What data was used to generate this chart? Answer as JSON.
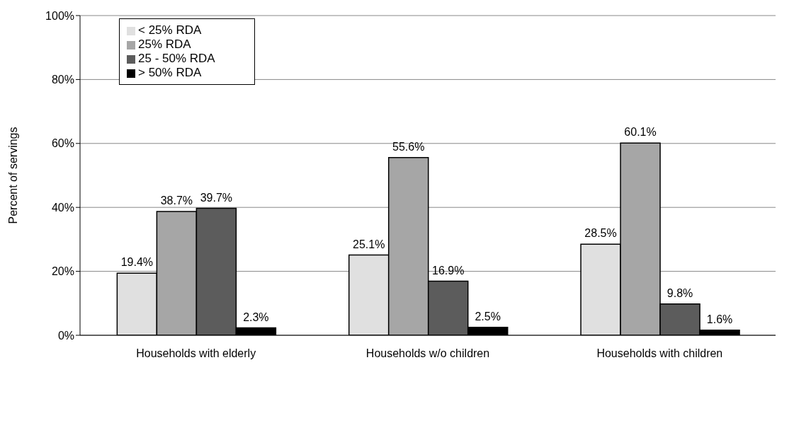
{
  "chart_data": {
    "type": "bar",
    "ylabel": "Percent of servings",
    "categories": [
      "Households with elderly",
      "Households w/o children",
      "Households with children"
    ],
    "series": [
      {
        "name": "< 25% RDA",
        "color": "#e0e0e0",
        "values": [
          19.4,
          25.1,
          28.5
        ],
        "value_labels": [
          "19.4%",
          "25.1%",
          "28.5%"
        ]
      },
      {
        "name": "25% RDA",
        "color": "#a6a6a6",
        "values": [
          38.7,
          55.6,
          60.1
        ],
        "value_labels": [
          "38.7%",
          "55.6%",
          "60.1%"
        ]
      },
      {
        "name": "25 - 50% RDA",
        "color": "#5c5c5c",
        "values": [
          39.7,
          16.9,
          9.8
        ],
        "value_labels": [
          "39.7%",
          "16.9%",
          "9.8%"
        ]
      },
      {
        "name": "> 50% RDA",
        "color": "#000000",
        "values": [
          2.3,
          2.5,
          1.6
        ],
        "value_labels": [
          "2.3%",
          "2.5%",
          "1.6%"
        ]
      }
    ],
    "ylim": [
      0,
      100
    ],
    "yticks": [
      {
        "value": 0,
        "label": "0%"
      },
      {
        "value": 20,
        "label": "20%"
      },
      {
        "value": 40,
        "label": "40%"
      },
      {
        "value": 60,
        "label": "60%"
      },
      {
        "value": 80,
        "label": "80%"
      },
      {
        "value": 100,
        "label": "100%"
      }
    ],
    "grid": "y",
    "legend": "top left"
  }
}
